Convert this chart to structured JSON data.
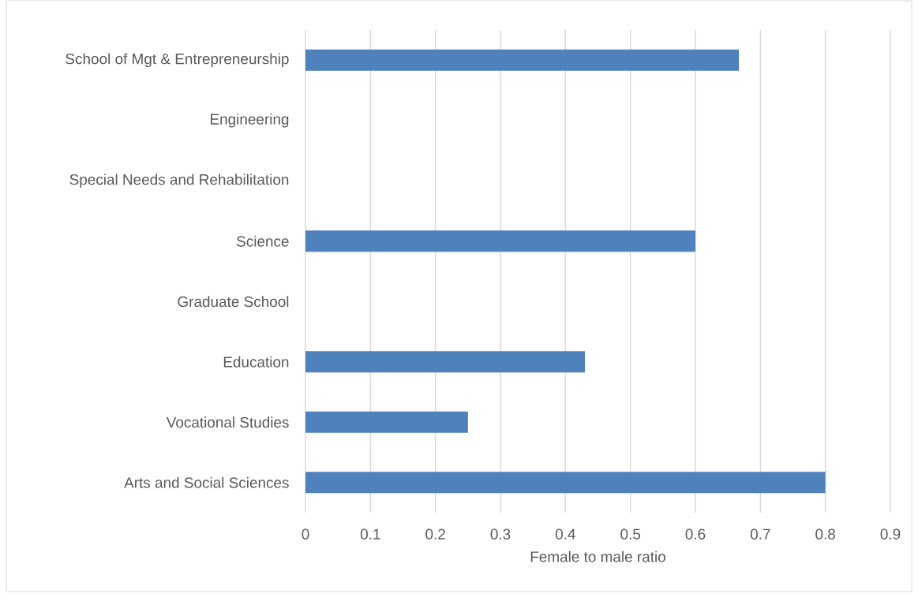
{
  "chart_data": {
    "type": "bar",
    "orientation": "horizontal",
    "categories": [
      "School of Mgt & Entrepreneurship",
      "Engineering",
      "Special Needs and Rehabilitation",
      "Science",
      "Graduate School",
      "Education",
      "Vocational Studies",
      "Arts and Social Sciences"
    ],
    "values": [
      0.667,
      0,
      0,
      0.6,
      0,
      0.43,
      0.25,
      0.8
    ],
    "color": "#4f81bd",
    "xlabel": "Female to male ratio",
    "xlim": [
      0,
      0.9
    ],
    "xticks": [
      0,
      0.1,
      0.2,
      0.3,
      0.4,
      0.5,
      0.6,
      0.7,
      0.8,
      0.9
    ],
    "grid": "x"
  }
}
